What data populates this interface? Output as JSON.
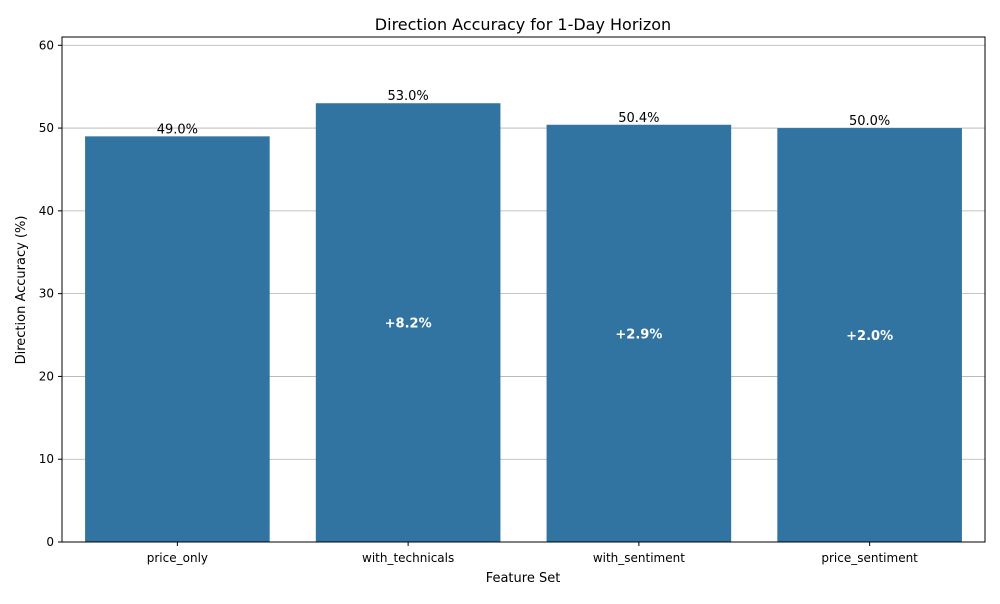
{
  "chart_data": {
    "type": "bar",
    "title": "Direction Accuracy for 1-Day Horizon",
    "xlabel": "Feature Set",
    "ylabel": "Direction Accuracy (%)",
    "categories": [
      "price_only",
      "with_technicals",
      "with_sentiment",
      "price_sentiment"
    ],
    "values": [
      49.0,
      53.0,
      50.4,
      50.0
    ],
    "value_labels": [
      "49.0%",
      "53.0%",
      "50.4%",
      "50.0%"
    ],
    "improvement_labels": [
      "",
      "+8.2%",
      "+2.9%",
      "+2.0%"
    ],
    "ylim": [
      0,
      61
    ],
    "yticks": [
      0,
      10,
      20,
      30,
      40,
      50,
      60
    ],
    "grid": "horizontal",
    "bar_color": "#3274a1",
    "improvement_label_color": "#ffffff"
  }
}
